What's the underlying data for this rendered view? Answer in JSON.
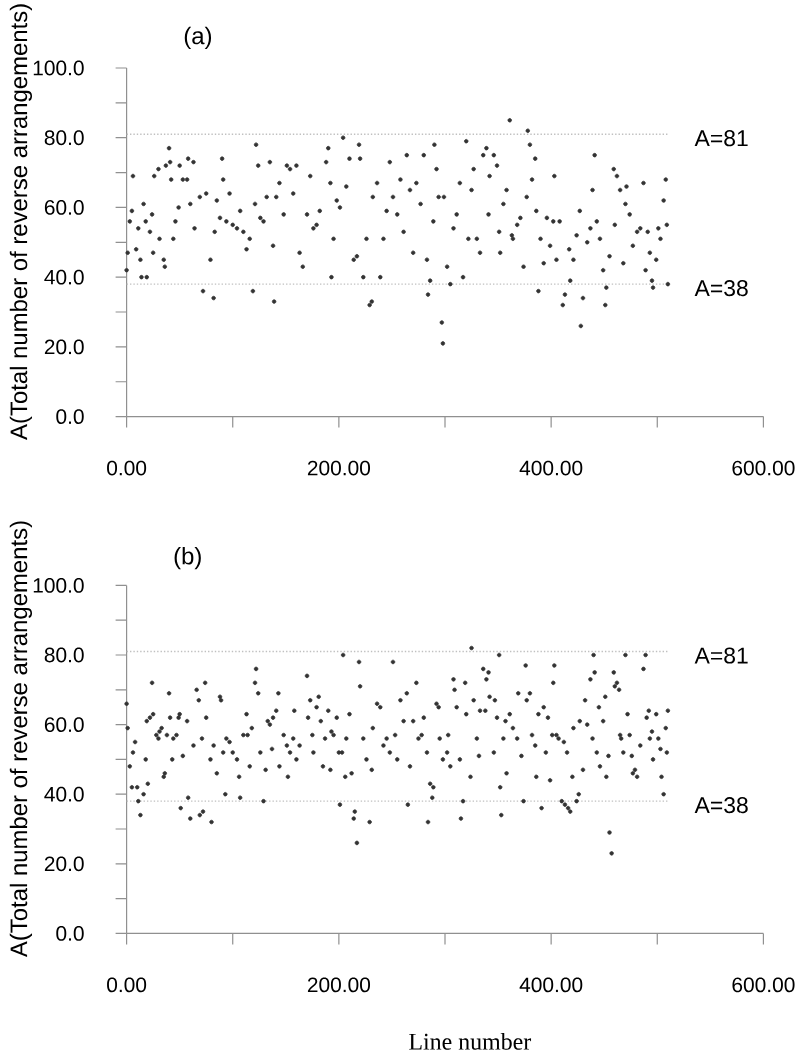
{
  "chart_data": [
    {
      "type": "scatter",
      "title": "(a)",
      "ylabel": "A(Total number of reverse arrangements)",
      "xlim": [
        0,
        600
      ],
      "ylim": [
        0,
        100
      ],
      "xticks": [
        {
          "value": 0,
          "label": "0.00"
        },
        {
          "value": 100,
          "label": null
        },
        {
          "value": 200,
          "label": "200.00"
        },
        {
          "value": 300,
          "label": null
        },
        {
          "value": 400,
          "label": "400.00"
        },
        {
          "value": 500,
          "label": null
        },
        {
          "value": 600,
          "label": "600.00"
        }
      ],
      "yticks": [
        {
          "value": 0,
          "label": "0.0"
        },
        {
          "value": 10,
          "label": null
        },
        {
          "value": 20,
          "label": "20.0"
        },
        {
          "value": 30,
          "label": null
        },
        {
          "value": 40,
          "label": "40.0"
        },
        {
          "value": 50,
          "label": null
        },
        {
          "value": 60,
          "label": "60.0"
        },
        {
          "value": 70,
          "label": null
        },
        {
          "value": 80,
          "label": "80.0"
        },
        {
          "value": 90,
          "label": null
        },
        {
          "value": 100,
          "label": "100.0"
        }
      ],
      "marker": "circle",
      "ref_lines": [
        {
          "axis": "y",
          "value": 81,
          "label": "A=81",
          "color": "#c0c0c0",
          "line_style": "dotted"
        },
        {
          "axis": "y",
          "value": 38,
          "label": "A=38",
          "color": "#c0c0c0",
          "line_style": "dotted"
        }
      ],
      "series": [
        {
          "color": "#333333",
          "x": [
            0,
            1,
            3,
            5,
            6,
            9,
            11,
            13,
            14,
            16,
            18,
            19,
            22,
            24,
            25,
            26,
            30,
            31,
            35,
            36,
            37,
            40,
            41,
            42,
            44,
            46,
            49,
            50,
            53,
            57,
            58,
            60,
            63,
            64,
            69,
            72,
            75,
            79,
            82,
            83,
            85,
            88,
            90,
            91,
            94,
            97,
            100,
            104,
            107,
            110,
            113,
            116,
            119,
            121,
            122,
            124,
            126,
            129,
            132,
            135,
            138,
            139,
            141,
            144,
            148,
            151,
            154,
            157,
            160,
            163,
            166,
            170,
            173,
            176,
            179,
            182,
            188,
            190,
            192,
            193,
            195,
            198,
            201,
            204,
            207,
            210,
            214,
            217,
            219,
            220,
            223,
            226,
            229,
            231,
            232,
            236,
            239,
            242,
            245,
            248,
            251,
            255,
            258,
            261,
            264,
            267,
            270,
            273,
            277,
            280,
            283,
            284,
            286,
            289,
            290,
            292,
            294,
            297,
            298,
            299,
            302,
            305,
            308,
            311,
            314,
            317,
            320,
            322,
            325,
            327,
            330,
            333,
            336,
            339,
            341,
            342,
            346,
            349,
            351,
            352,
            355,
            358,
            361,
            363,
            364,
            368,
            371,
            374,
            377,
            378,
            380,
            382,
            385,
            386,
            388,
            390,
            393,
            396,
            399,
            402,
            403,
            405,
            408,
            411,
            413,
            417,
            418,
            421,
            424,
            427,
            428,
            430,
            434,
            437,
            439,
            441,
            443,
            446,
            449,
            451,
            452,
            455,
            459,
            460,
            462,
            465,
            468,
            470,
            471,
            474,
            477,
            481,
            484,
            487,
            489,
            491,
            493,
            495,
            496,
            499,
            501,
            503,
            506,
            508,
            509,
            510
          ],
          "values": [
            42,
            47,
            56,
            59,
            69,
            48,
            54,
            45,
            40,
            61,
            56,
            40,
            53,
            58,
            47,
            69,
            71,
            51,
            45,
            43,
            72,
            77,
            73,
            68,
            51,
            56,
            60,
            72,
            68,
            68,
            74,
            61,
            73,
            54,
            63,
            36,
            64,
            45,
            34,
            53,
            62,
            57,
            74,
            68,
            56,
            64,
            55,
            54,
            59,
            53,
            48,
            51,
            36,
            61,
            78,
            72,
            57,
            56,
            63,
            73,
            49,
            33,
            63,
            67,
            58,
            72,
            71,
            64,
            72,
            47,
            43,
            58,
            69,
            54,
            55,
            59,
            73,
            77,
            67,
            40,
            51,
            62,
            60,
            80,
            66,
            74,
            45,
            46,
            78,
            74,
            40,
            51,
            32,
            33,
            63,
            67,
            40,
            51,
            59,
            73,
            63,
            58,
            68,
            53,
            75,
            65,
            47,
            67,
            61,
            75,
            45,
            35,
            39,
            56,
            78,
            71,
            63,
            27,
            21,
            63,
            43,
            38,
            54,
            58,
            67,
            40,
            79,
            51,
            65,
            71,
            51,
            47,
            75,
            77,
            58,
            69,
            75,
            72,
            53,
            47,
            61,
            65,
            85,
            52,
            51,
            55,
            57,
            43,
            63,
            82,
            78,
            68,
            74,
            59,
            36,
            51,
            44,
            57,
            49,
            56,
            69,
            45,
            56,
            32,
            35,
            48,
            39,
            45,
            52,
            59,
            26,
            34,
            50,
            54,
            65,
            75,
            56,
            51,
            42,
            32,
            37,
            46,
            71,
            55,
            69,
            65,
            44,
            61,
            66,
            58,
            49,
            53,
            54,
            67,
            42,
            53,
            47,
            39,
            37,
            45,
            54,
            51,
            62,
            68,
            55,
            38
          ]
        }
      ]
    },
    {
      "type": "scatter",
      "title": "(b)",
      "xlabel": "Line number",
      "ylabel": "A(Total number of reverse arrangements)",
      "xlim": [
        0,
        600
      ],
      "ylim": [
        0,
        100
      ],
      "xticks": [
        {
          "value": 0,
          "label": "0.00"
        },
        {
          "value": 100,
          "label": null
        },
        {
          "value": 200,
          "label": "200.00"
        },
        {
          "value": 300,
          "label": null
        },
        {
          "value": 400,
          "label": "400.00"
        },
        {
          "value": 500,
          "label": null
        },
        {
          "value": 600,
          "label": "600.00"
        }
      ],
      "yticks": [
        {
          "value": 0,
          "label": "0.0"
        },
        {
          "value": 10,
          "label": null
        },
        {
          "value": 20,
          "label": "20.0"
        },
        {
          "value": 30,
          "label": null
        },
        {
          "value": 40,
          "label": "40.0"
        },
        {
          "value": 50,
          "label": null
        },
        {
          "value": 60,
          "label": "60.0"
        },
        {
          "value": 70,
          "label": null
        },
        {
          "value": 80,
          "label": "80.0"
        },
        {
          "value": 90,
          "label": null
        },
        {
          "value": 100,
          "label": "100.0"
        }
      ],
      "marker": "circle",
      "ref_lines": [
        {
          "axis": "y",
          "value": 81,
          "label": "A=81",
          "color": "#c0c0c0",
          "line_style": "dotted"
        },
        {
          "axis": "y",
          "value": 38,
          "label": "A=38",
          "color": "#c0c0c0",
          "line_style": "dotted"
        }
      ],
      "series": [
        {
          "color": "#333333",
          "x": [
            0,
            1,
            3,
            5,
            6,
            8,
            10,
            11,
            13,
            16,
            18,
            19,
            20,
            22,
            24,
            25,
            28,
            30,
            31,
            33,
            35,
            36,
            38,
            40,
            41,
            43,
            44,
            47,
            49,
            50,
            51,
            53,
            57,
            58,
            60,
            63,
            66,
            68,
            69,
            71,
            72,
            74,
            75,
            79,
            80,
            82,
            85,
            88,
            89,
            91,
            93,
            94,
            97,
            100,
            104,
            106,
            107,
            110,
            113,
            114,
            116,
            118,
            121,
            122,
            124,
            126,
            129,
            131,
            133,
            135,
            137,
            138,
            141,
            143,
            144,
            148,
            151,
            152,
            154,
            157,
            158,
            160,
            163,
            170,
            171,
            173,
            175,
            176,
            179,
            181,
            183,
            185,
            187,
            190,
            192,
            193,
            195,
            198,
            200,
            201,
            203,
            204,
            206,
            207,
            210,
            212,
            214,
            215,
            217,
            219,
            220,
            223,
            226,
            229,
            231,
            232,
            236,
            239,
            242,
            245,
            248,
            251,
            253,
            255,
            258,
            261,
            264,
            265,
            267,
            270,
            273,
            275,
            278,
            280,
            283,
            284,
            286,
            288,
            289,
            292,
            294,
            295,
            298,
            302,
            303,
            305,
            308,
            309,
            311,
            314,
            315,
            317,
            319,
            320,
            324,
            325,
            327,
            330,
            332,
            333,
            336,
            338,
            339,
            341,
            342,
            346,
            347,
            349,
            351,
            352,
            353,
            355,
            357,
            358,
            361,
            364,
            368,
            369,
            372,
            374,
            376,
            377,
            380,
            382,
            385,
            386,
            388,
            391,
            393,
            395,
            397,
            399,
            401,
            402,
            403,
            405,
            407,
            410,
            412,
            413,
            415,
            416,
            418,
            420,
            421,
            424,
            426,
            427,
            430,
            432,
            434,
            437,
            439,
            440,
            441,
            443,
            445,
            446,
            449,
            451,
            452,
            454,
            455,
            457,
            459,
            460,
            462,
            464,
            465,
            466,
            468,
            470,
            472,
            474,
            476,
            477,
            479,
            481,
            484,
            487,
            489,
            490,
            492,
            493,
            495,
            496,
            499,
            501,
            503,
            504,
            506,
            508,
            509,
            510
          ],
          "values": [
            66,
            59,
            48,
            42,
            52,
            55,
            42,
            38,
            34,
            40,
            50,
            61,
            43,
            62,
            72,
            63,
            57,
            56,
            58,
            59,
            45,
            46,
            57,
            69,
            62,
            50,
            56,
            57,
            62,
            63,
            36,
            51,
            61,
            39,
            33,
            54,
            70,
            67,
            34,
            56,
            35,
            72,
            62,
            50,
            32,
            54,
            46,
            68,
            67,
            52,
            40,
            56,
            55,
            52,
            50,
            45,
            39,
            57,
            63,
            57,
            48,
            59,
            72,
            76,
            69,
            52,
            38,
            47,
            61,
            60,
            53,
            62,
            64,
            69,
            48,
            57,
            54,
            45,
            52,
            56,
            64,
            50,
            54,
            74,
            62,
            67,
            57,
            52,
            65,
            68,
            61,
            48,
            56,
            64,
            47,
            58,
            57,
            62,
            52,
            37,
            52,
            80,
            45,
            56,
            63,
            46,
            33,
            35,
            26,
            78,
            71,
            56,
            50,
            32,
            47,
            59,
            66,
            65,
            54,
            56,
            52,
            78,
            57,
            50,
            67,
            61,
            69,
            37,
            48,
            61,
            72,
            56,
            57,
            62,
            52,
            32,
            43,
            39,
            42,
            66,
            65,
            56,
            50,
            52,
            57,
            48,
            73,
            70,
            65,
            50,
            33,
            38,
            72,
            63,
            45,
            82,
            67,
            56,
            51,
            64,
            76,
            64,
            73,
            75,
            68,
            52,
            67,
            62,
            80,
            42,
            34,
            56,
            61,
            46,
            63,
            59,
            56,
            69,
            51,
            38,
            77,
            67,
            69,
            57,
            54,
            45,
            63,
            36,
            65,
            52,
            62,
            44,
            57,
            72,
            77,
            57,
            56,
            38,
            55,
            37,
            52,
            36,
            35,
            45,
            59,
            38,
            40,
            61,
            47,
            67,
            60,
            73,
            56,
            80,
            75,
            52,
            65,
            48,
            61,
            68,
            45,
            51,
            29,
            23,
            75,
            71,
            72,
            70,
            57,
            56,
            52,
            80,
            63,
            57,
            51,
            46,
            47,
            45,
            54,
            76,
            80,
            62,
            64,
            56,
            58,
            50,
            63,
            56,
            53,
            45,
            40,
            59,
            52,
            64
          ]
        }
      ]
    }
  ]
}
